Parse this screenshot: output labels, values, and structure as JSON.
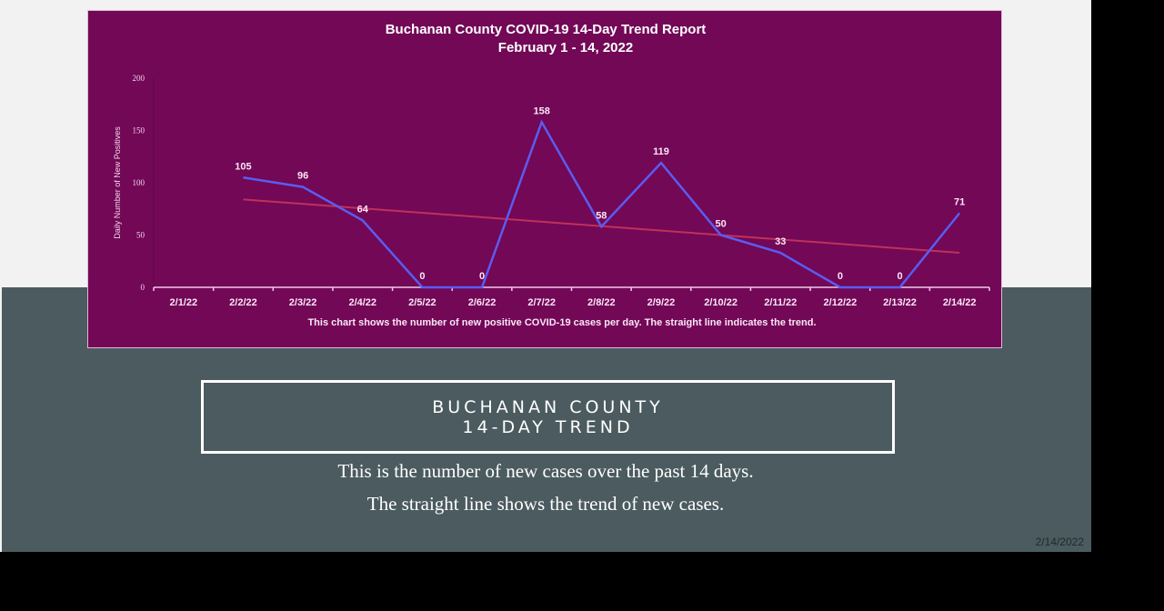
{
  "slide": {
    "heading_line1": "BUCHANAN COUNTY",
    "heading_line2": "14-DAY TREND",
    "body_line1": "This is the number of new cases over the past 14 days.",
    "body_line2": "The straight line shows the trend of new cases.",
    "footer_date": "2/14/2022",
    "colors": {
      "chart_bg": "#720856",
      "slide_top_bg": "#f2f2f2",
      "slide_bottom_bg": "#4b5b5f",
      "series_line": "#5b5cf0",
      "trend_line": "#c0305a"
    }
  },
  "chart_data": {
    "type": "line",
    "title": "Buchanan County COVID-19 14-Day Trend Report",
    "subtitle": "February 1 - 14, 2022",
    "xlabel": "",
    "ylabel": "Daily Number of New Positives",
    "caption": "This chart shows the number of new positive COVID-19 cases per day. The straight line indicates the trend.",
    "categories": [
      "2/1/22",
      "2/2/22",
      "2/3/22",
      "2/4/22",
      "2/5/22",
      "2/6/22",
      "2/7/22",
      "2/8/22",
      "2/9/22",
      "2/10/22",
      "2/11/22",
      "2/12/22",
      "2/13/22",
      "2/14/22"
    ],
    "series": [
      {
        "name": "New Positives",
        "values": [
          null,
          105,
          96,
          64,
          0,
          0,
          158,
          58,
          119,
          50,
          33,
          0,
          0,
          71
        ],
        "data_labels": true
      },
      {
        "name": "Trend",
        "type": "linear-trendline",
        "start": 84,
        "end": 33
      }
    ],
    "yticks": [
      "0",
      "50",
      "100",
      "150",
      "200"
    ],
    "ylim": [
      0,
      200
    ],
    "grid": false,
    "legend": "none"
  }
}
